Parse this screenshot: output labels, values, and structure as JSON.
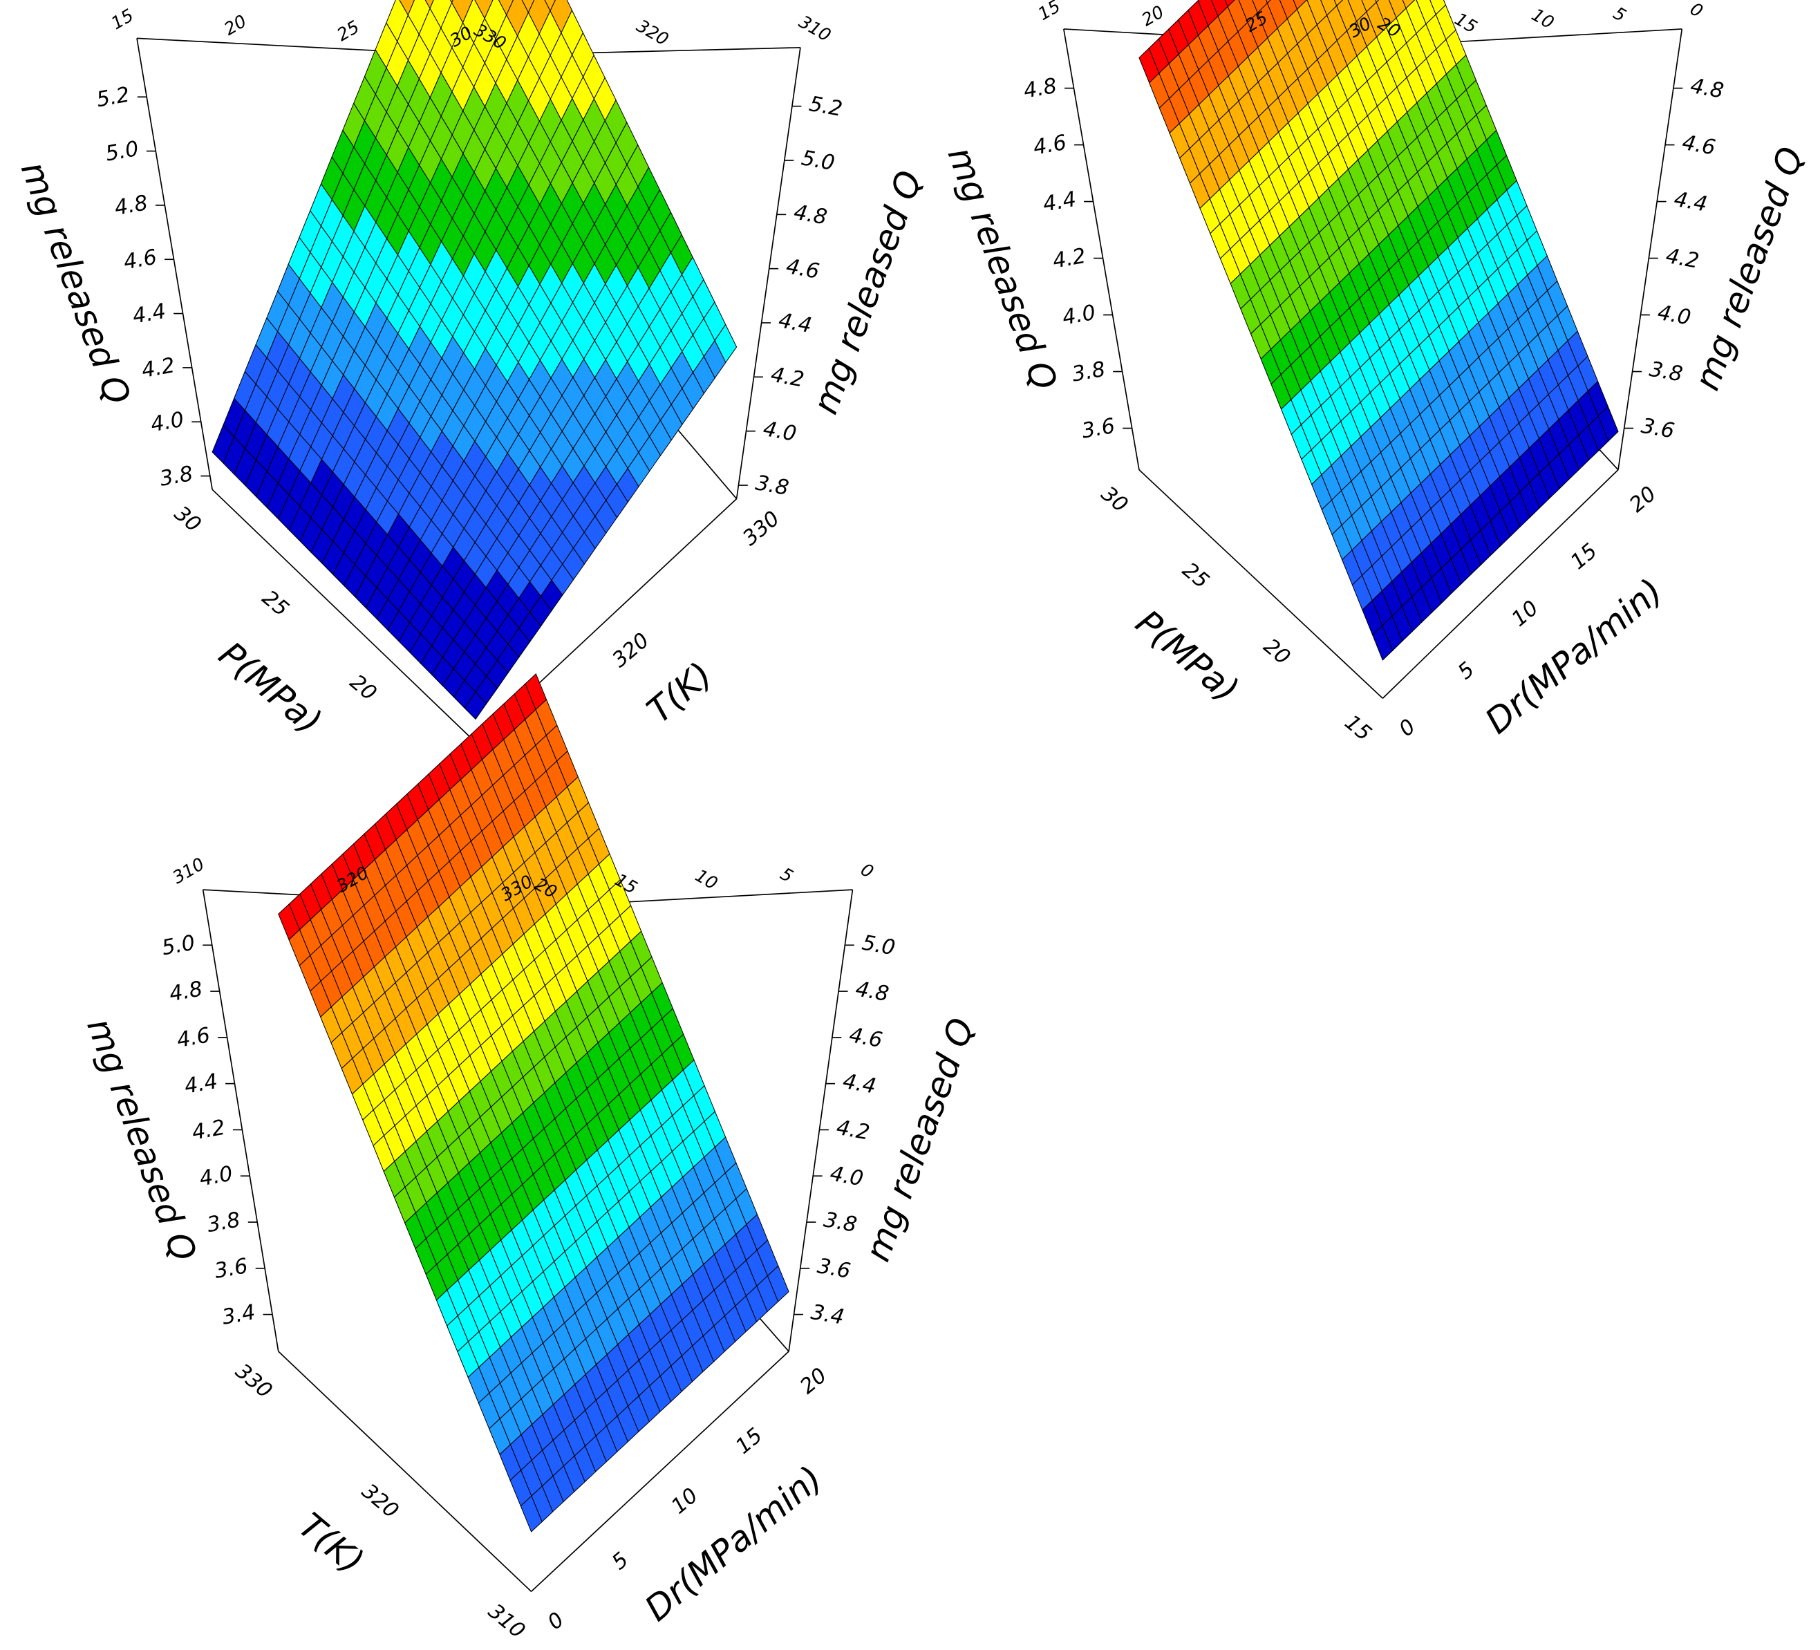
{
  "chart_data": [
    {
      "type": "surface3d",
      "x_axis": {
        "label": "P(MPa)",
        "ticks": [
          "15",
          "20",
          "25",
          "30"
        ],
        "range": [
          15,
          30
        ]
      },
      "y_axis": {
        "label": "T(K)",
        "ticks": [
          "310",
          "320",
          "330"
        ],
        "range": [
          305,
          335
        ]
      },
      "z_axis": {
        "label": "mg released Q",
        "ticks": [
          "3.8",
          "4.0",
          "4.2",
          "4.4",
          "4.6",
          "4.8",
          "5.0",
          "5.2"
        ],
        "range": [
          3.8,
          5.3
        ]
      },
      "corner_values": {
        "P_low_T_low": 3.8,
        "P_high_T_low": 3.85,
        "P_low_T_high": 4.25,
        "P_high_T_high": 5.25
      },
      "colormap": [
        "#0000cc",
        "#1f5fff",
        "#1e9bff",
        "#00ffff",
        "#00cc00",
        "#66dd00",
        "#ffff00",
        "#ffb000",
        "#ff6600",
        "#ff0000"
      ]
    },
    {
      "type": "surface3d",
      "x_axis": {
        "label": "P(MPa)",
        "ticks": [
          "15",
          "20",
          "25",
          "30"
        ],
        "range": [
          15,
          30
        ]
      },
      "y_axis": {
        "label": "Dr(MPa/min)",
        "ticks": [
          "0",
          "5",
          "10",
          "15",
          "20"
        ],
        "range": [
          0,
          20
        ]
      },
      "z_axis": {
        "label": "mg released Q",
        "ticks": [
          "3.6",
          "3.8",
          "4.0",
          "4.2",
          "4.4",
          "4.6",
          "4.8"
        ],
        "range": [
          3.5,
          4.9
        ]
      },
      "corner_values": {
        "P_low_Dr_low": 3.55,
        "P_high_Dr_low": 4.8,
        "P_low_Dr_high": 3.55,
        "P_high_Dr_high": 4.8
      },
      "colormap": [
        "#0000cc",
        "#1f5fff",
        "#1e9bff",
        "#00ffff",
        "#00cc00",
        "#66dd00",
        "#ffff00",
        "#ffb000",
        "#ff6600",
        "#ff0000"
      ]
    },
    {
      "type": "surface3d",
      "x_axis": {
        "label": "T(K)",
        "ticks": [
          "310",
          "320",
          "330"
        ],
        "range": [
          305,
          335
        ]
      },
      "y_axis": {
        "label": "Dr(MPa/min)",
        "ticks": [
          "0",
          "5",
          "10",
          "15",
          "20"
        ],
        "range": [
          0,
          20
        ]
      },
      "z_axis": {
        "label": "mg released Q",
        "ticks": [
          "3.4",
          "3.6",
          "3.8",
          "4.0",
          "4.2",
          "4.4",
          "4.6",
          "4.8",
          "5.0"
        ],
        "range": [
          3.3,
          5.1
        ]
      },
      "corner_values": {
        "T_low_Dr_low": 3.45,
        "T_high_Dr_low": 5.0,
        "T_low_Dr_high": 3.45,
        "T_high_Dr_high": 5.0
      },
      "colormap": [
        "#0000cc",
        "#1f5fff",
        "#1e9bff",
        "#00ffff",
        "#00cc00",
        "#66dd00",
        "#ffff00",
        "#ffb000",
        "#ff6600",
        "#ff0000"
      ]
    }
  ]
}
